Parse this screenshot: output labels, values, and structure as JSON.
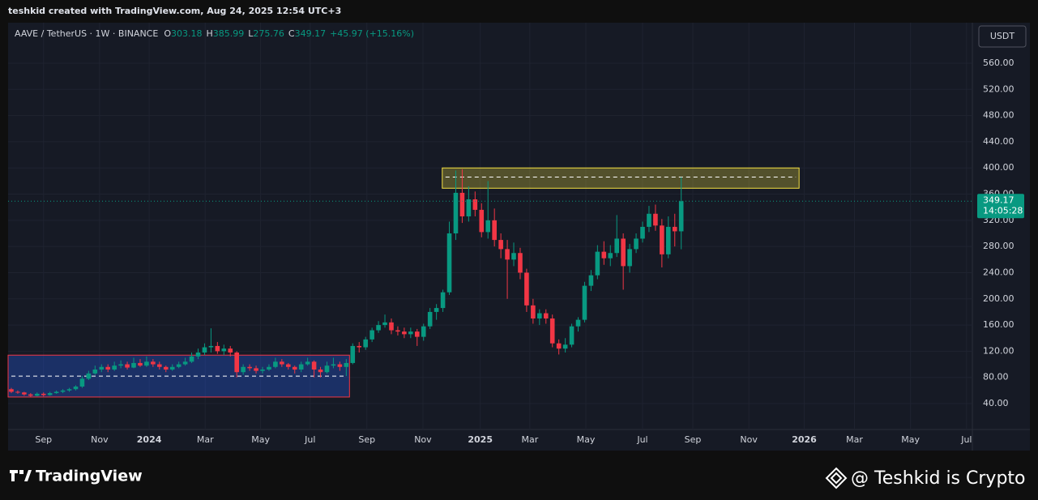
{
  "header": {
    "credit": "teshkid created with TradingView.com, Aug 24, 2025 12:54 UTC+3"
  },
  "currency_button": "USDT",
  "footer": {
    "logo": "TradingView",
    "watermark": "@ Teshkid is Crypto"
  },
  "chart_data": {
    "type": "candlestick",
    "symbol": "AAVE / TetherUS · 1W · BINANCE",
    "legend_keys": [
      "O",
      "H",
      "L",
      "C"
    ],
    "change": "+45.97 (+15.16%)",
    "countdown": "14:05:28",
    "up_color": "#089981",
    "down_color": "#f23645",
    "ohlc": [
      [
        62,
        64,
        56,
        58
      ],
      [
        58,
        60,
        55,
        57
      ],
      [
        57,
        58,
        52,
        54
      ],
      [
        54,
        56,
        50,
        52
      ],
      [
        52,
        57,
        51,
        55
      ],
      [
        55,
        57,
        51,
        53
      ],
      [
        53,
        58,
        52,
        56
      ],
      [
        56,
        60,
        55,
        58
      ],
      [
        58,
        62,
        56,
        60
      ],
      [
        60,
        64,
        58,
        62
      ],
      [
        62,
        68,
        60,
        66
      ],
      [
        66,
        82,
        64,
        78
      ],
      [
        78,
        90,
        76,
        86
      ],
      [
        86,
        98,
        84,
        92
      ],
      [
        92,
        100,
        88,
        96
      ],
      [
        96,
        100,
        88,
        92
      ],
      [
        92,
        104,
        90,
        98
      ],
      [
        98,
        106,
        94,
        100
      ],
      [
        100,
        104,
        92,
        95
      ],
      [
        95,
        110,
        94,
        102
      ],
      [
        102,
        108,
        96,
        98
      ],
      [
        98,
        112,
        96,
        104
      ],
      [
        104,
        108,
        96,
        100
      ],
      [
        100,
        104,
        92,
        96
      ],
      [
        96,
        98,
        88,
        92
      ],
      [
        92,
        100,
        90,
        96
      ],
      [
        96,
        104,
        94,
        100
      ],
      [
        100,
        110,
        98,
        104
      ],
      [
        104,
        118,
        102,
        112
      ],
      [
        112,
        124,
        108,
        118
      ],
      [
        118,
        132,
        114,
        126
      ],
      [
        126,
        155,
        118,
        128
      ],
      [
        128,
        134,
        116,
        120
      ],
      [
        120,
        130,
        114,
        124
      ],
      [
        124,
        128,
        112,
        118
      ],
      [
        118,
        120,
        80,
        88
      ],
      [
        88,
        100,
        84,
        96
      ],
      [
        96,
        100,
        90,
        94
      ],
      [
        94,
        98,
        86,
        90
      ],
      [
        90,
        96,
        86,
        92
      ],
      [
        92,
        100,
        90,
        96
      ],
      [
        96,
        110,
        94,
        104
      ],
      [
        104,
        108,
        96,
        100
      ],
      [
        100,
        102,
        92,
        96
      ],
      [
        96,
        98,
        86,
        92
      ],
      [
        92,
        104,
        88,
        100
      ],
      [
        100,
        110,
        98,
        104
      ],
      [
        104,
        106,
        80,
        92
      ],
      [
        92,
        96,
        80,
        88
      ],
      [
        88,
        104,
        86,
        98
      ],
      [
        98,
        110,
        94,
        100
      ],
      [
        100,
        104,
        90,
        96
      ],
      [
        96,
        108,
        82,
        102
      ],
      [
        102,
        132,
        100,
        128
      ],
      [
        128,
        134,
        118,
        126
      ],
      [
        126,
        142,
        122,
        138
      ],
      [
        138,
        156,
        134,
        152
      ],
      [
        152,
        166,
        148,
        160
      ],
      [
        160,
        176,
        156,
        164
      ],
      [
        164,
        170,
        146,
        152
      ],
      [
        152,
        158,
        144,
        150
      ],
      [
        150,
        156,
        140,
        146
      ],
      [
        146,
        156,
        140,
        150
      ],
      [
        150,
        154,
        128,
        142
      ],
      [
        142,
        162,
        136,
        158
      ],
      [
        158,
        186,
        154,
        180
      ],
      [
        180,
        192,
        168,
        186
      ],
      [
        186,
        214,
        180,
        210
      ],
      [
        210,
        318,
        206,
        300
      ],
      [
        300,
        396,
        290,
        362
      ],
      [
        362,
        398,
        316,
        326
      ],
      [
        326,
        372,
        318,
        352
      ],
      [
        352,
        364,
        326,
        336
      ],
      [
        336,
        346,
        294,
        302
      ],
      [
        302,
        380,
        292,
        320
      ],
      [
        320,
        338,
        280,
        290
      ],
      [
        290,
        300,
        262,
        276
      ],
      [
        276,
        290,
        200,
        260
      ],
      [
        260,
        286,
        250,
        270
      ],
      [
        270,
        278,
        230,
        240
      ],
      [
        240,
        246,
        180,
        190
      ],
      [
        190,
        200,
        162,
        170
      ],
      [
        170,
        184,
        160,
        178
      ],
      [
        178,
        184,
        162,
        170
      ],
      [
        170,
        176,
        126,
        132
      ],
      [
        132,
        138,
        115,
        124
      ],
      [
        124,
        140,
        118,
        130
      ],
      [
        130,
        162,
        126,
        158
      ],
      [
        158,
        172,
        150,
        168
      ],
      [
        168,
        226,
        164,
        220
      ],
      [
        220,
        244,
        212,
        236
      ],
      [
        236,
        282,
        230,
        272
      ],
      [
        272,
        288,
        252,
        262
      ],
      [
        262,
        282,
        250,
        270
      ],
      [
        270,
        328,
        264,
        292
      ],
      [
        292,
        300,
        214,
        250
      ],
      [
        250,
        284,
        240,
        276
      ],
      [
        276,
        300,
        270,
        292
      ],
      [
        292,
        318,
        286,
        310
      ],
      [
        310,
        342,
        302,
        330
      ],
      [
        330,
        344,
        304,
        312
      ],
      [
        312,
        322,
        248,
        268
      ],
      [
        268,
        326,
        262,
        310
      ],
      [
        310,
        330,
        280,
        303.18
      ],
      [
        303.18,
        385.99,
        275.76,
        349.17
      ]
    ],
    "zones": [
      {
        "xlim": [
          66.9,
          122.3
        ],
        "ylim": [
          369,
          400
        ],
        "line": 386,
        "color": "#f5e142"
      },
      {
        "xlim": [
          -0.5,
          52.5
        ],
        "ylim": [
          50,
          114
        ],
        "line": 82,
        "color": "#f23645"
      }
    ],
    "xlim": [
      -0.5,
      149.2
    ],
    "xticks": [
      {
        "value": 5.0,
        "label": "Sep"
      },
      {
        "value": 13.7,
        "label": "Nov"
      },
      {
        "value": 21.4,
        "label": "2024"
      },
      {
        "value": 30.1,
        "label": "Mar"
      },
      {
        "value": 38.7,
        "label": "May"
      },
      {
        "value": 46.4,
        "label": "Jul"
      },
      {
        "value": 55.2,
        "label": "Sep"
      },
      {
        "value": 63.9,
        "label": "Nov"
      },
      {
        "value": 72.8,
        "label": "2025"
      },
      {
        "value": 80.5,
        "label": "Mar"
      },
      {
        "value": 89.2,
        "label": "May"
      },
      {
        "value": 98.0,
        "label": "Jul"
      },
      {
        "value": 105.8,
        "label": "Sep"
      },
      {
        "value": 114.5,
        "label": "Nov"
      },
      {
        "value": 123.1,
        "label": "2026"
      },
      {
        "value": 130.9,
        "label": "Mar"
      },
      {
        "value": 139.6,
        "label": "May"
      },
      {
        "value": 148.3,
        "label": "Jul"
      }
    ],
    "ylim": [
      0.4,
      621.9
    ],
    "yticks": [
      {
        "value": 40,
        "label": "40.00"
      },
      {
        "value": 80,
        "label": "80.00"
      },
      {
        "value": 120,
        "label": "120.00"
      },
      {
        "value": 160,
        "label": "160.00"
      },
      {
        "value": 200,
        "label": "200.00"
      },
      {
        "value": 240,
        "label": "240.00"
      },
      {
        "value": 280,
        "label": "280.00"
      },
      {
        "value": 320,
        "label": "320.00"
      },
      {
        "value": 360,
        "label": "360.00"
      },
      {
        "value": 400,
        "label": "400.00"
      },
      {
        "value": 440,
        "label": "440.00"
      },
      {
        "value": 480,
        "label": "480.00"
      },
      {
        "value": 520,
        "label": "520.00"
      },
      {
        "value": 560,
        "label": "560.00"
      }
    ],
    "grid": true
  }
}
